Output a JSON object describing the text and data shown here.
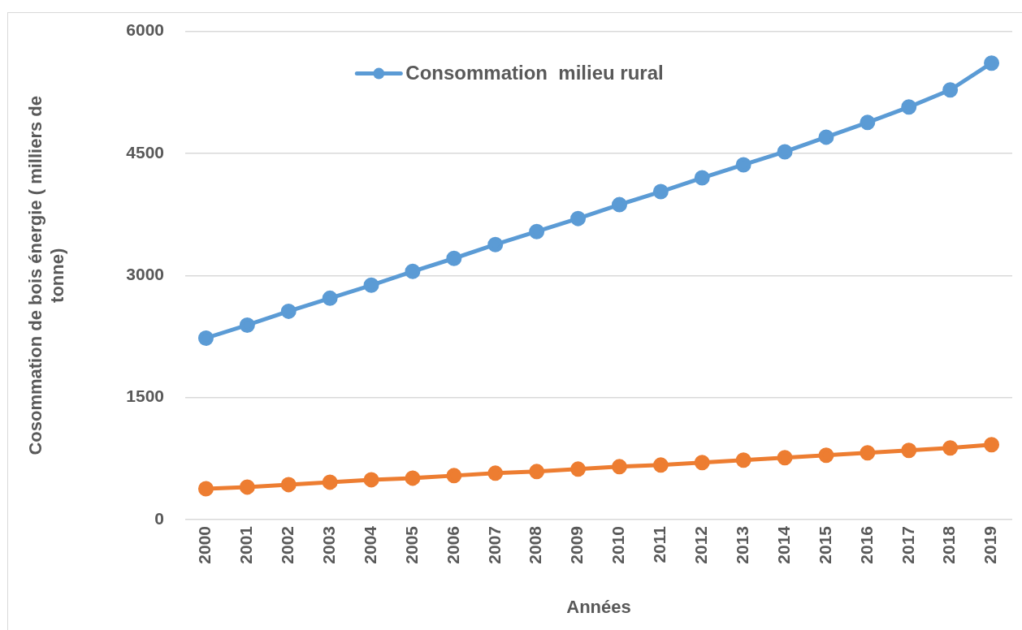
{
  "chart_data": {
    "type": "line",
    "xlabel": "Années",
    "ylabel": "Cosommation de bois énergie ( milliers de tonne)",
    "categories": [
      "2000",
      "2001",
      "2002",
      "2003",
      "2004",
      "2005",
      "2006",
      "2007",
      "2008",
      "2009",
      "2010",
      "2011",
      "2012",
      "2013",
      "2014",
      "2015",
      "2016",
      "2017",
      "2018",
      "2019"
    ],
    "series": [
      {
        "name": "Consommation  milieu rural",
        "color": "#5b9bd5",
        "values": [
          2230,
          2390,
          2560,
          2720,
          2880,
          3050,
          3210,
          3380,
          3540,
          3700,
          3870,
          4030,
          4200,
          4360,
          4520,
          4700,
          4880,
          5070,
          5280,
          5610
        ]
      },
      {
        "color": "#ed7d31",
        "values": [
          380,
          400,
          430,
          460,
          490,
          510,
          540,
          570,
          590,
          620,
          650,
          670,
          700,
          730,
          760,
          790,
          820,
          850,
          880,
          920
        ]
      }
    ],
    "ylim": [
      0,
      6000
    ],
    "yticks": [
      0,
      1500,
      3000,
      4500,
      6000
    ],
    "grid": "y",
    "legend": "top",
    "marker": "circle"
  }
}
